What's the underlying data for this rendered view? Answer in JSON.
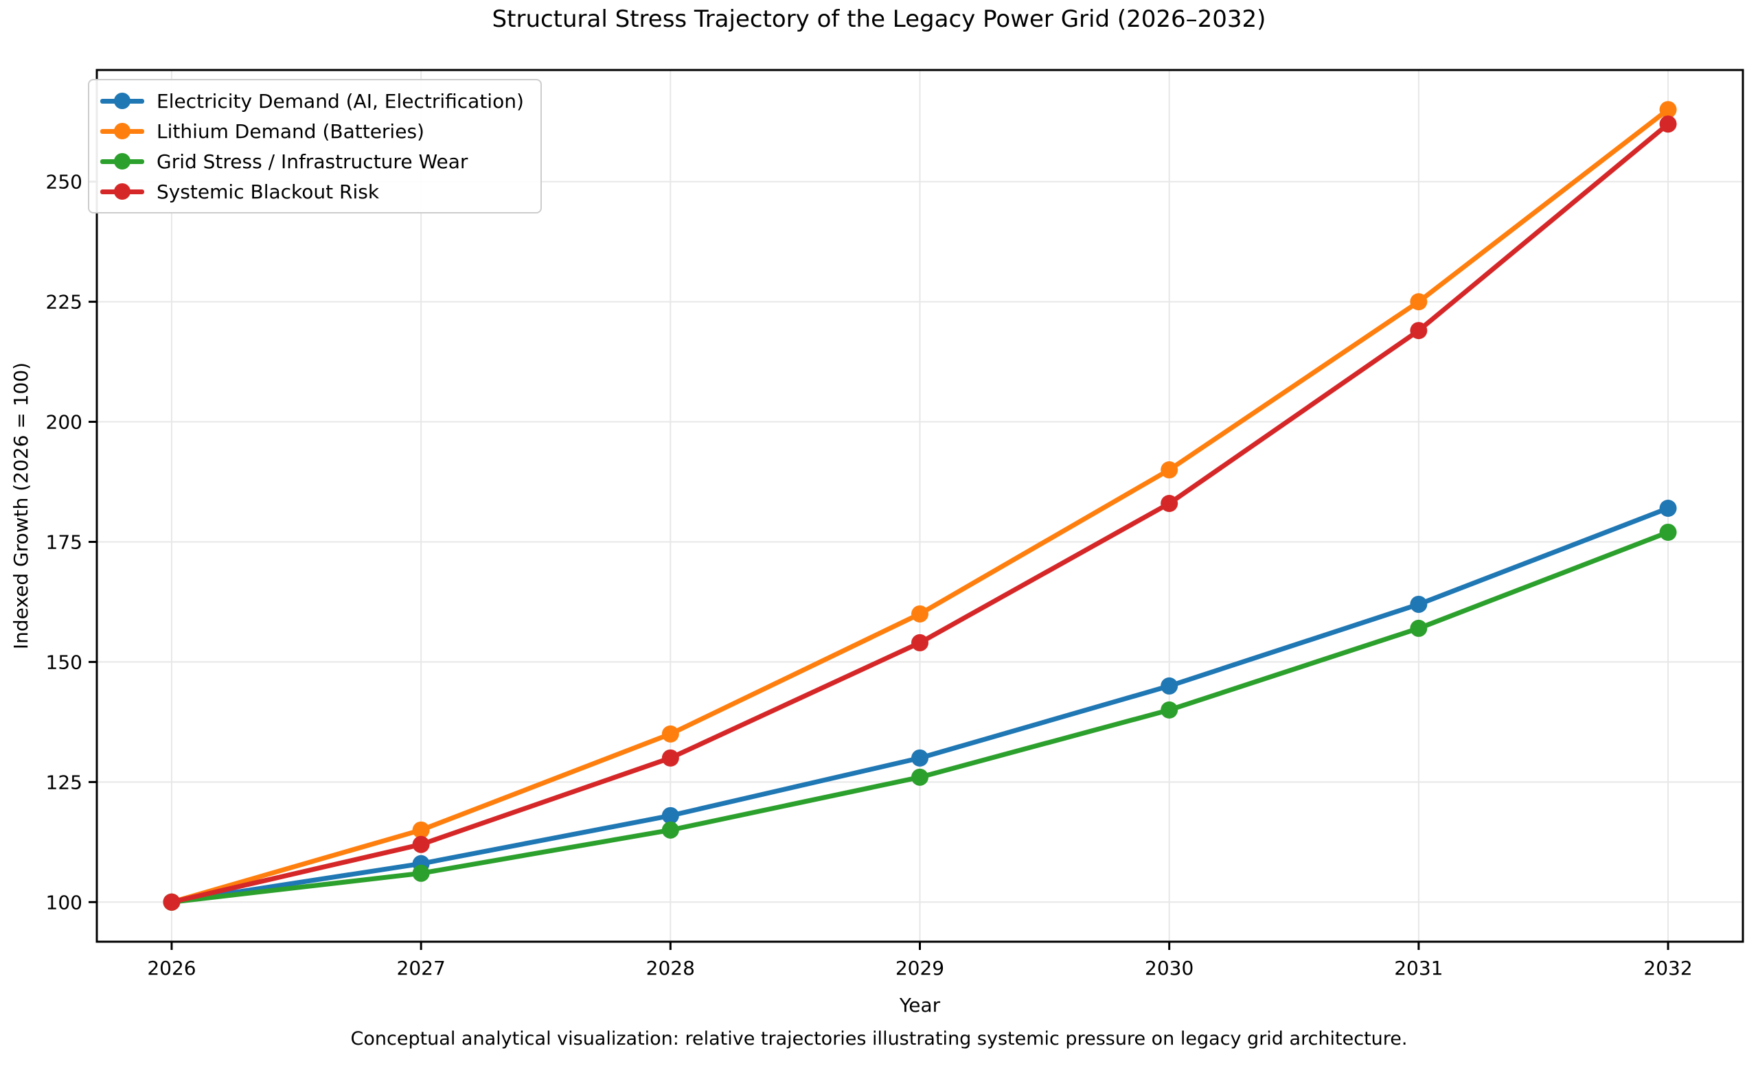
{
  "title": "Structural Stress Trajectory of the Legacy Power Grid (2026–2032)",
  "caption": "Conceptual analytical visualization: relative trajectories illustrating systemic pressure on legacy grid architecture.",
  "chart_data": {
    "type": "line",
    "title": "Structural Stress Trajectory of the Legacy Power Grid (2026–2032)",
    "xlabel": "Year",
    "ylabel": "Indexed Growth (2026 = 100)",
    "x": [
      2026,
      2027,
      2028,
      2029,
      2030,
      2031,
      2032
    ],
    "categories": [
      "2026",
      "2027",
      "2028",
      "2029",
      "2030",
      "2031",
      "2032"
    ],
    "series": [
      {
        "name": "Electricity Demand (AI, Electrification)",
        "color": "#1f77b4",
        "values": [
          100,
          108,
          118,
          130,
          145,
          162,
          182
        ]
      },
      {
        "name": "Lithium Demand (Batteries)",
        "color": "#ff7f0e",
        "values": [
          100,
          115,
          135,
          160,
          190,
          225,
          265
        ]
      },
      {
        "name": "Grid Stress / Infrastructure Wear",
        "color": "#2ca02c",
        "values": [
          100,
          106,
          115,
          126,
          140,
          157,
          177
        ]
      },
      {
        "name": "Systemic Blackout Risk",
        "color": "#d62728",
        "values": [
          100,
          112,
          130,
          154,
          183,
          219,
          262
        ]
      }
    ],
    "yticks": [
      100,
      125,
      150,
      175,
      200,
      225,
      250
    ],
    "xlim": [
      2025.7,
      2032.3
    ],
    "ylim": [
      91.75,
      273.25
    ],
    "grid": true,
    "legend_position": "upper-left",
    "marker": "circle"
  },
  "colors": {
    "grid": "#e7e7e7",
    "spine": "#000000",
    "background": "#ffffff"
  }
}
